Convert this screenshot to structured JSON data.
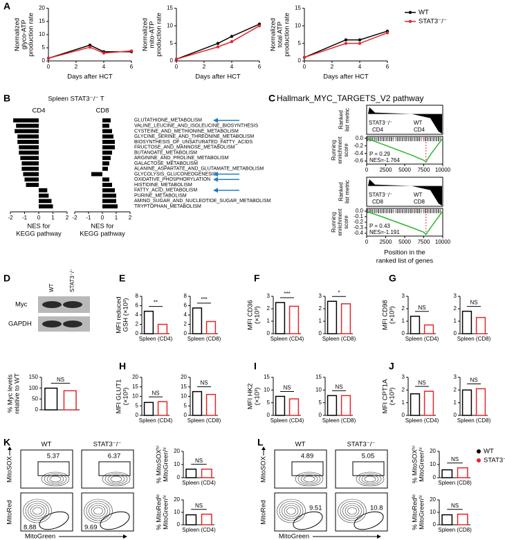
{
  "panel_labels": [
    "A",
    "B",
    "C",
    "D",
    "E",
    "F",
    "G",
    "H",
    "I",
    "J",
    "K",
    "L"
  ],
  "blot": {
    "lanes": [
      "WT",
      "STAT3⁻/⁻"
    ],
    "rows": [
      "Myc",
      "GAPDH"
    ]
  },
  "flow": [
    {
      "headers": [
        "WT",
        "STAT3⁻/⁻"
      ],
      "top": [
        5.37,
        6.37
      ],
      "bottom": [
        8.88,
        9.69
      ],
      "y_top": "MitoSOX",
      "y_bottom": "MitoRed",
      "x": "MitoGreen"
    },
    {
      "headers": [
        "WT",
        "STAT3⁻/⁻"
      ],
      "top": [
        4.89,
        5.05
      ],
      "bottom": [
        9.51,
        10.8
      ],
      "y_top": "MitoSOX",
      "y_bottom": "MitoRed",
      "x": "MitoGreen"
    }
  ],
  "flow_legend": [
    {
      "name": "WT",
      "color": "#000000"
    },
    {
      "name": "STAT3⁻/⁻",
      "color": "#e3262b"
    }
  ],
  "chart_data": [
    {
      "type": "line",
      "ylabel": [
        "Normalized",
        "glyco-ATP",
        "production rate"
      ],
      "xlabel": "Days after HCT",
      "x": [
        0,
        3,
        4,
        6
      ],
      "xlim": [
        0,
        6
      ],
      "xticks": [
        0,
        2,
        4,
        6
      ],
      "ylim": [
        0,
        20
      ],
      "yticks": [
        0,
        5,
        10,
        15,
        20
      ],
      "series": [
        {
          "name": "WT",
          "color": "#000000",
          "values": [
            1,
            6,
            3.5,
            3.5
          ]
        },
        {
          "name": "STAT3⁻/⁻",
          "color": "#e3262b",
          "values": [
            1,
            5.2,
            3,
            3.8
          ]
        }
      ]
    },
    {
      "type": "line",
      "ylabel": [
        "Normalized",
        "mito-ATP",
        "production rate"
      ],
      "xlabel": "Days after HCT",
      "x": [
        0,
        3,
        4,
        6
      ],
      "xlim": [
        0,
        6
      ],
      "xticks": [
        0,
        2,
        4,
        6
      ],
      "ylim": [
        0,
        15
      ],
      "yticks": [
        0,
        5,
        10,
        15
      ],
      "series": [
        {
          "name": "WT",
          "color": "#000000",
          "values": [
            0.5,
            5,
            7,
            10.5
          ]
        },
        {
          "name": "STAT3⁻/⁻",
          "color": "#e3262b",
          "values": [
            0.5,
            4,
            5.5,
            10
          ]
        }
      ]
    },
    {
      "type": "line",
      "ylabel": [
        "Normalized",
        "total ATP",
        "production rate"
      ],
      "xlabel": "Days after HCT",
      "x": [
        0,
        3,
        4,
        6
      ],
      "xlim": [
        0,
        6
      ],
      "xticks": [
        0,
        2,
        4,
        6
      ],
      "ylim": [
        0,
        15
      ],
      "yticks": [
        0,
        5,
        10,
        15
      ],
      "legend": "right",
      "series": [
        {
          "name": "WT",
          "color": "#000000",
          "values": [
            1,
            6,
            6,
            8.5
          ]
        },
        {
          "name": "STAT3⁻/⁻",
          "color": "#e3262b",
          "values": [
            1,
            5,
            5,
            8
          ]
        }
      ]
    },
    {
      "type": "hbar",
      "title": "Spleen STAT3⁻/⁻ T",
      "xlabel": [
        "NES for",
        "KEGG pathway"
      ],
      "xlim": [
        -2,
        2
      ],
      "xticks": [
        -2,
        -1,
        0,
        1,
        2
      ],
      "color": "#000000",
      "categories": [
        "GLUTATHIONE_METABOLISM",
        "VALINE_LEUCINE_AND_ISOLEUCINE_BIOSYNTHESIS",
        "CYSTEINE_AND_METHIONINE_METABOLISM",
        "GLYCINE_SERINE_AND_THREONINE_METABOLISM",
        "BIOSYNTHESIS_OF_UNSATURATED_FATTY_ACIDS",
        "FRUCTOSE_AND_MANNOSE_METABOLISM",
        "BUTANOATE_METABOLISM",
        "ARGININE_AND_PROLINE_METABOLISM",
        "GALACTOSE_METABOLISM",
        "ALANINE_ASPARTATE_AND_GLUTAMATE_METABOLISM",
        "GLYCOLYSIS_GLUCONEOGENESIS",
        "OXIDATIVE_PHOSPHORYLATION",
        "HISTIDINE_METABOLISM",
        "FATTY_ACID_METABOLISM",
        "PURINE_METABOLISM",
        "AMINO_SUGAR_AND_NUCLEOTIDE_SUGAR_METABOLISM",
        "TRYPTOPHAN_METABOLISM"
      ],
      "label_colors": [
        "#1f7ec4",
        "#000000",
        "#000000",
        "#000000",
        "#000000",
        "#000000",
        "#000000",
        "#000000",
        "#000000",
        "#000000",
        "#1f7ec4",
        "#1f7ec4",
        "#000000",
        "#1f7ec4",
        "#000000",
        "#000000",
        "#000000"
      ],
      "panels": [
        {
          "name": "CD4",
          "values": [
            -1.8,
            -1.6,
            -1.7,
            -1.5,
            -1.5,
            -1.4,
            -1.4,
            -1.3,
            -1.2,
            -1.2,
            -1.1,
            -1.0,
            -0.9,
            0.6,
            0.7,
            0.9,
            1.0
          ]
        },
        {
          "name": "CD8",
          "values": [
            0.6,
            0.5,
            0.7,
            0.8,
            0.9,
            0.9,
            0.7,
            0.6,
            0.5,
            0.4,
            -0.8,
            0.5,
            0.7,
            0.9,
            1.0,
            1.0,
            1.1
          ]
        }
      ]
    },
    {
      "type": "gsea",
      "title": "Hallmark_MYC_TARGETS_V2 pathway",
      "metric_label": [
        "Ranked",
        "list metric"
      ],
      "labels": [
        "STAT3⁻/⁻",
        "CD4",
        "WT",
        "CD4"
      ],
      "ylabel": [
        "Running",
        "enrichment",
        "score"
      ],
      "p_label": "P = 0.29",
      "nes_label": "NES=-1.764",
      "color": "#2fb52f",
      "x": [
        0,
        500,
        2000,
        4000,
        6000,
        7500,
        7800,
        8500,
        10000
      ],
      "values": [
        0,
        -0.04,
        -0.15,
        -0.3,
        -0.45,
        -0.58,
        -0.62,
        -0.4,
        0
      ],
      "xlim": [
        0,
        10000
      ],
      "xticks": [
        0,
        2500,
        5000,
        7500,
        10000
      ],
      "ylim": [
        -0.68,
        0.05
      ],
      "yticks": [
        {
          "value": 0,
          "label": "0.0"
        },
        -0.2,
        -0.4,
        -0.6
      ]
    },
    {
      "type": "gsea",
      "metric_label": [
        "Ranked",
        "list metric"
      ],
      "labels": [
        "STAT3⁻/⁻",
        "CD8",
        "WT",
        "CD8"
      ],
      "ylabel": [
        "Running",
        "enrichment",
        "score"
      ],
      "p_label": "P = 0.43",
      "nes_label": "NES=-1.191",
      "color": "#2fb52f",
      "x": [
        0,
        500,
        2000,
        4000,
        6000,
        7500,
        7800,
        8500,
        10000
      ],
      "values": [
        0,
        -0.03,
        -0.1,
        -0.2,
        -0.3,
        -0.38,
        -0.42,
        -0.28,
        0
      ],
      "xlim": [
        0,
        10000
      ],
      "xticks": [
        0,
        2500,
        5000,
        7500,
        10000
      ],
      "ylim": [
        -0.45,
        0.05
      ],
      "yticks": [
        {
          "value": 0,
          "label": "0.0"
        },
        -0.1,
        -0.2,
        -0.3,
        -0.4
      ],
      "xlabel": [
        "Position in the",
        "ranked list of genes"
      ]
    },
    {
      "type": "bar",
      "ylabel": [
        "% Myc levels",
        "relative to WT"
      ],
      "values": [
        100,
        88
      ],
      "colors": [
        "#000000",
        "#e3262b"
      ],
      "ylim": [
        0,
        150
      ],
      "yticks": [
        0,
        50,
        100,
        150
      ],
      "significance": "NS"
    },
    {
      "type": "bar",
      "ylabel": [
        "MFI reduced",
        "GSH (×10³)"
      ],
      "xlabel": "Spleen (CD4)",
      "values": [
        4.8,
        2.0
      ],
      "colors": [
        "#000000",
        "#e3262b"
      ],
      "ylim": [
        0,
        8
      ],
      "yticks": [
        0,
        2,
        4,
        6,
        8
      ],
      "significance": "**"
    },
    {
      "type": "bar",
      "xlabel": "Spleen (CD8)",
      "values": [
        5.5,
        2.6
      ],
      "colors": [
        "#000000",
        "#e3262b"
      ],
      "ylim": [
        0,
        8
      ],
      "yticks": [
        0,
        2,
        4,
        6,
        8
      ],
      "significance": "***"
    },
    {
      "type": "bar",
      "ylabel": [
        "MFI CD36",
        "(×10³)"
      ],
      "xlabel": "Spleen (CD4)",
      "values": [
        2.5,
        2.2
      ],
      "colors": [
        "#000000",
        "#e3262b"
      ],
      "ylim": [
        0,
        3
      ],
      "yticks": [
        0,
        1,
        2,
        3
      ],
      "significance": "***"
    },
    {
      "type": "bar",
      "xlabel": "Spleen (CD8)",
      "values": [
        2.6,
        2.4
      ],
      "colors": [
        "#000000",
        "#e3262b"
      ],
      "ylim": [
        0,
        3
      ],
      "yticks": [
        0,
        1,
        2,
        3
      ],
      "significance": "*"
    },
    {
      "type": "bar",
      "ylabel": [
        "MFI CD98",
        "(×10³)"
      ],
      "xlabel": "Spleen (CD4)",
      "values": [
        1.4,
        0.7
      ],
      "colors": [
        "#000000",
        "#e3262b"
      ],
      "ylim": [
        0,
        3
      ],
      "yticks": [
        0,
        1,
        2,
        3
      ],
      "significance": "NS"
    },
    {
      "type": "bar",
      "xlabel": "Spleen (CD8)",
      "values": [
        1.8,
        1.3
      ],
      "colors": [
        "#000000",
        "#e3262b"
      ],
      "ylim": [
        0,
        3
      ],
      "yticks": [
        0,
        1,
        2,
        3
      ],
      "significance": "NS"
    },
    {
      "type": "bar",
      "ylabel": [
        "MFI GLUT1",
        "(×10³)"
      ],
      "xlabel": "Spleen (CD4)",
      "values": [
        6.8,
        7.2
      ],
      "colors": [
        "#000000",
        "#e3262b"
      ],
      "ylim": [
        0,
        20
      ],
      "yticks": [
        0,
        5,
        10,
        15,
        20
      ],
      "significance": "NS"
    },
    {
      "type": "bar",
      "xlabel": "Spleen (CD8)",
      "values": [
        12.5,
        11
      ],
      "colors": [
        "#000000",
        "#e3262b"
      ],
      "ylim": [
        0,
        20
      ],
      "yticks": [
        0,
        5,
        10,
        15,
        20
      ],
      "significance": "NS"
    },
    {
      "type": "bar",
      "ylabel": [
        "MFI HK2",
        "(×10³)"
      ],
      "xlabel": "Spleen (CD4)",
      "values": [
        7.5,
        6.5
      ],
      "colors": [
        "#000000",
        "#e3262b"
      ],
      "ylim": [
        0,
        15
      ],
      "yticks": [
        0,
        5,
        10,
        15
      ],
      "significance": "NS"
    },
    {
      "type": "bar",
      "xlabel": "Spleen (CD8)",
      "values": [
        7.8,
        7.8
      ],
      "colors": [
        "#000000",
        "#e3262b"
      ],
      "ylim": [
        0,
        15
      ],
      "yticks": [
        0,
        5,
        10,
        15
      ],
      "significance": "NS"
    },
    {
      "type": "bar",
      "ylabel": [
        "MFI CPT1A",
        "(×10³)"
      ],
      "xlabel": "Spleen (CD4)",
      "values": [
        1.7,
        1.9
      ],
      "colors": [
        "#000000",
        "#e3262b"
      ],
      "ylim": [
        0,
        3
      ],
      "yticks": [
        0,
        1,
        2,
        3
      ],
      "significance": "NS"
    },
    {
      "type": "bar",
      "xlabel": "Spleen (CD8)",
      "values": [
        2.0,
        2.1
      ],
      "colors": [
        "#000000",
        "#e3262b"
      ],
      "ylim": [
        0,
        3
      ],
      "yticks": [
        0,
        1,
        2,
        3
      ],
      "significance": "NS"
    },
    {
      "type": "bar",
      "ylabel": [
        "% MitoSOXʰⁱ",
        "MitoGreenʰⁱ"
      ],
      "xlabel": "Spleen (CD4)",
      "values": [
        6.5,
        6.5
      ],
      "colors": [
        "#000000",
        "#e3262b"
      ],
      "ylim": [
        0,
        20
      ],
      "yticks": [
        0,
        10,
        20
      ],
      "significance": "NS"
    },
    {
      "type": "bar",
      "ylabel": [
        "% MitoRedˡᵒ",
        "MitoGreenʰⁱ"
      ],
      "xlabel": "Spleen (CD4)",
      "values": [
        8,
        8.5
      ],
      "colors": [
        "#000000",
        "#e3262b"
      ],
      "ylim": [
        0,
        20
      ],
      "yticks": [
        0,
        10,
        20
      ],
      "significance": "NS"
    },
    {
      "type": "bar",
      "ylabel": [
        "% MitoSOXʰⁱ",
        "MitoGreenʰⁱ"
      ],
      "xlabel": "Spleen (CD8)",
      "values": [
        6,
        7.5
      ],
      "colors": [
        "#000000",
        "#e3262b"
      ],
      "ylim": [
        0,
        20
      ],
      "yticks": [
        0,
        10,
        20
      ],
      "significance": "NS"
    },
    {
      "type": "bar",
      "ylabel": [
        "% MitoRedˡᵒ",
        "MitoGreenʰⁱ"
      ],
      "xlabel": "Spleen (CD8)",
      "values": [
        8,
        8.5
      ],
      "colors": [
        "#000000",
        "#e3262b"
      ],
      "ylim": [
        0,
        20
      ],
      "yticks": [
        0,
        10,
        20
      ],
      "significance": "NS"
    }
  ]
}
